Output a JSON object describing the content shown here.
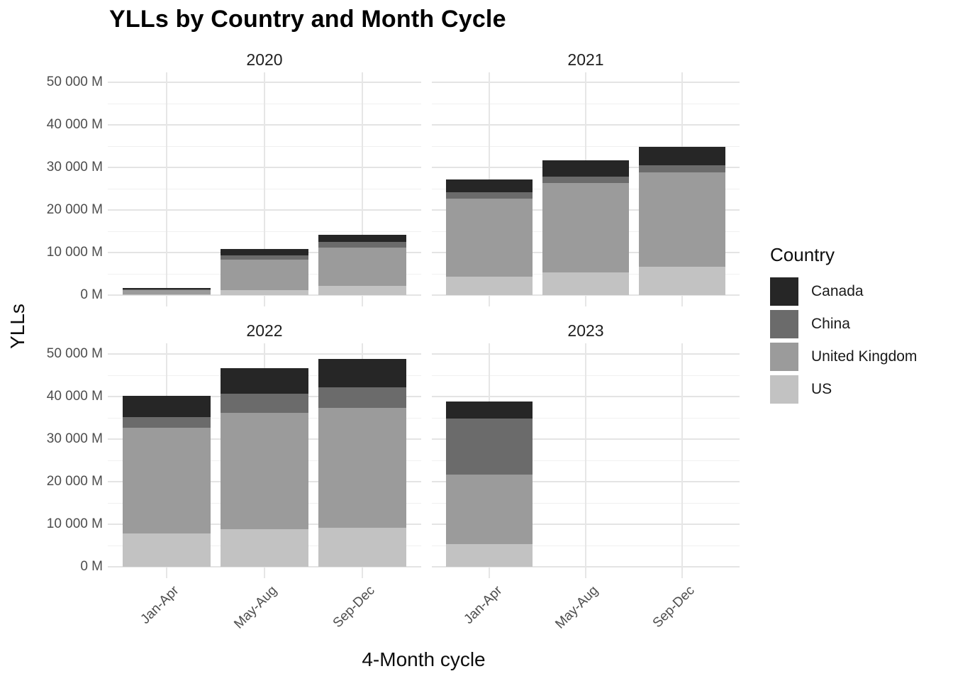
{
  "title": "YLLs by Country and Month Cycle",
  "chart_data": {
    "type": "bar",
    "stacked": true,
    "title": "YLLs by Country and Month Cycle",
    "xlabel": "4-Month cycle",
    "ylabel": "YLLs",
    "unit": "M",
    "ylim": [
      0,
      50000
    ],
    "grid": "on",
    "legend_position": "right",
    "facets": [
      "2020",
      "2021",
      "2022",
      "2023"
    ],
    "categories": [
      "Jan-Apr",
      "May-Aug",
      "Sep-Dec"
    ],
    "y_ticks": [
      {
        "value": 0,
        "label": "0 M"
      },
      {
        "value": 10000,
        "label": "10 000 M"
      },
      {
        "value": 20000,
        "label": "20 000 M"
      },
      {
        "value": 30000,
        "label": "30 000 M"
      },
      {
        "value": 40000,
        "label": "40 000 M"
      },
      {
        "value": 50000,
        "label": "50 000 M"
      }
    ],
    "y_minor_ticks": [
      5000,
      15000,
      25000,
      35000,
      45000
    ],
    "stack_order_bottom_to_top": [
      "US",
      "United Kingdom",
      "China",
      "Canada"
    ],
    "series": [
      {
        "name": "US",
        "color": "#c2c2c2",
        "values": [
          [
            250,
            1100,
            2100
          ],
          [
            4300,
            5300,
            6600
          ],
          [
            7900,
            8900,
            9200
          ],
          [
            5400,
            0,
            0
          ]
        ]
      },
      {
        "name": "United Kingdom",
        "color": "#9b9b9b",
        "values": [
          [
            900,
            7200,
            9000
          ],
          [
            18300,
            21000,
            22300
          ],
          [
            24800,
            27200,
            28200
          ],
          [
            16200,
            0,
            0
          ]
        ]
      },
      {
        "name": "China",
        "color": "#6b6b6b",
        "values": [
          [
            150,
            1100,
            1400
          ],
          [
            1500,
            1500,
            1600
          ],
          [
            2500,
            4500,
            4800
          ],
          [
            13300,
            0,
            0
          ]
        ]
      },
      {
        "name": "Canada",
        "color": "#262626",
        "values": [
          [
            400,
            1400,
            1600
          ],
          [
            3000,
            3800,
            4300
          ],
          [
            4900,
            6000,
            6700
          ],
          [
            4000,
            0,
            0
          ]
        ]
      }
    ]
  },
  "legend": {
    "title": "Country",
    "items": [
      {
        "label": "Canada",
        "color": "#262626"
      },
      {
        "label": "China",
        "color": "#6b6b6b"
      },
      {
        "label": "United Kingdom",
        "color": "#9b9b9b"
      },
      {
        "label": "US",
        "color": "#c2c2c2"
      }
    ]
  }
}
